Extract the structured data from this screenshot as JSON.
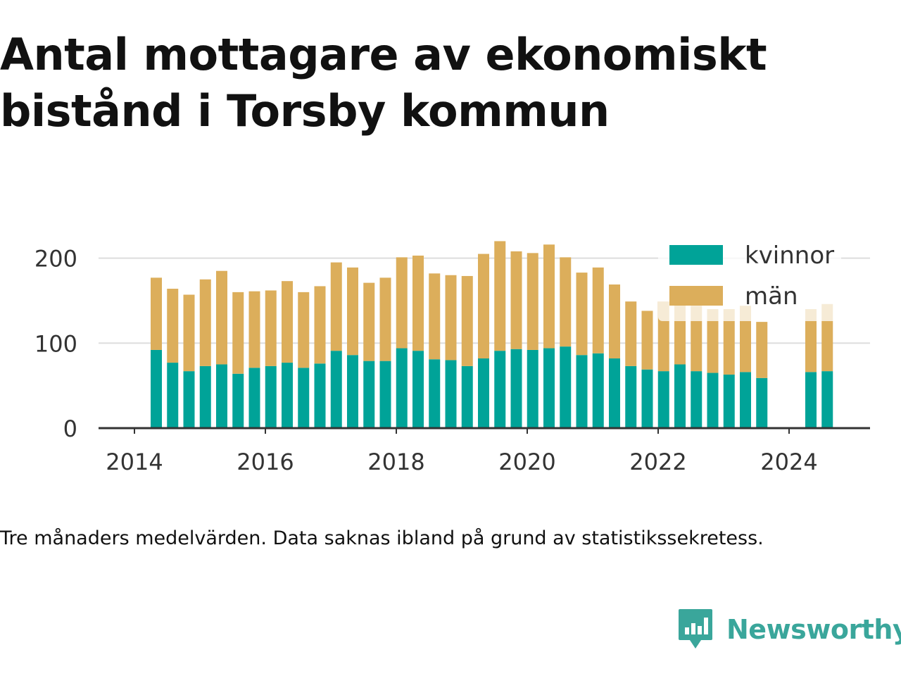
{
  "title": "Antal mottagare av ekonomiskt bistånd i Torsby kommun",
  "caption": "Tre månaders medelvärden. Data saknas ibland på grund av statistikssekretess.",
  "brand": {
    "name": "Newsworthy",
    "color": "#3aa69b"
  },
  "colors": {
    "kvinnor": "#00a398",
    "man": "#dcae5b",
    "gridline": "#dddddd",
    "axis": "#333333"
  },
  "chart_data": {
    "type": "bar",
    "stacked": true,
    "title": "Antal mottagare av ekonomiskt bistånd i Torsby kommun",
    "xlabel": "",
    "ylabel": "",
    "x_ticks": [
      "2014",
      "2016",
      "2018",
      "2020",
      "2022",
      "2024"
    ],
    "y_ticks": [
      "0",
      "100",
      "200"
    ],
    "xlim": [
      "2013-07",
      "2025-06"
    ],
    "ylim": [
      0,
      225
    ],
    "grid": true,
    "legend_position": "top-right",
    "x": [
      "2014-05",
      "2014-08",
      "2014-11",
      "2015-02",
      "2015-05",
      "2015-08",
      "2015-11",
      "2016-02",
      "2016-05",
      "2016-08",
      "2016-11",
      "2017-02",
      "2017-05",
      "2017-08",
      "2017-11",
      "2018-02",
      "2018-05",
      "2018-08",
      "2018-11",
      "2019-02",
      "2019-05",
      "2019-08",
      "2019-11",
      "2020-02",
      "2020-05",
      "2020-08",
      "2020-11",
      "2021-02",
      "2021-05",
      "2021-08",
      "2021-11",
      "2022-02",
      "2022-05",
      "2022-08",
      "2022-11",
      "2023-02",
      "2023-05",
      "2023-08",
      "2024-05",
      "2024-08"
    ],
    "series": [
      {
        "name": "kvinnor",
        "values": [
          92,
          77,
          67,
          73,
          75,
          64,
          71,
          73,
          77,
          71,
          76,
          91,
          86,
          79,
          79,
          94,
          91,
          81,
          80,
          73,
          82,
          91,
          93,
          92,
          94,
          96,
          86,
          88,
          82,
          73,
          69,
          67,
          75,
          67,
          65,
          63,
          66,
          59,
          66,
          67
        ]
      },
      {
        "name": "män",
        "values": [
          85,
          87,
          90,
          102,
          110,
          96,
          90,
          89,
          96,
          89,
          91,
          104,
          103,
          92,
          98,
          107,
          112,
          101,
          100,
          106,
          123,
          129,
          115,
          114,
          122,
          105,
          97,
          101,
          87,
          76,
          69,
          82,
          71,
          77,
          75,
          77,
          78,
          66,
          74,
          79
        ]
      }
    ]
  }
}
